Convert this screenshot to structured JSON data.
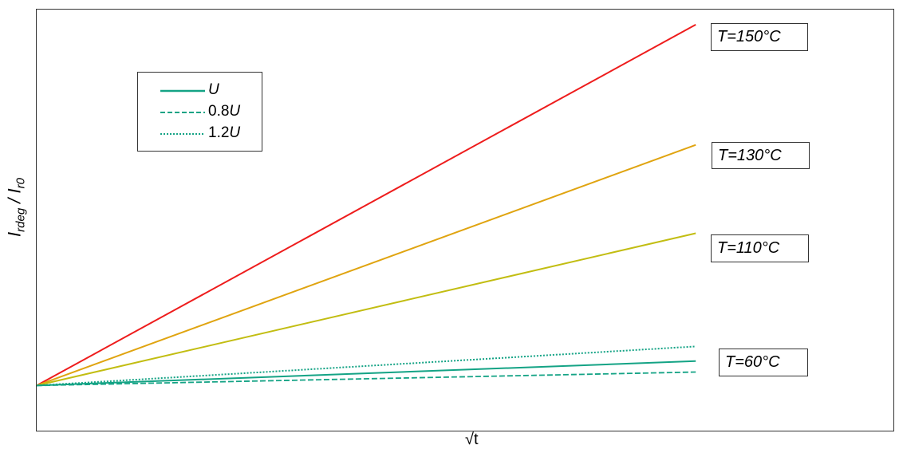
{
  "chart_data": {
    "type": "line",
    "xlabel": "√t",
    "ylabel": {
      "main": "I",
      "sub1": "rdeg",
      "sep": " / I",
      "sub2": "r0"
    },
    "colors": {
      "T150": "#ee1c1c",
      "T130": "#e0a410",
      "T110": "#c2bd12",
      "T60": "#14a385"
    },
    "xlim": [
      0,
      1.3
    ],
    "ylim": [
      -0.12,
      1.0
    ],
    "legend": {
      "position": "top-left",
      "entries": [
        {
          "prefix": "",
          "var": "U",
          "style": "solid"
        },
        {
          "prefix": "0.8",
          "var": "U",
          "style": "dashed"
        },
        {
          "prefix": "1.2",
          "var": "U",
          "style": "dotted"
        }
      ]
    },
    "series": [
      {
        "label": "T=150°C",
        "color_key": "T150",
        "style": "solid",
        "x": [
          0,
          1
        ],
        "y": [
          0,
          0.96
        ]
      },
      {
        "label": "T=130°C",
        "color_key": "T130",
        "style": "solid",
        "x": [
          0,
          1
        ],
        "y": [
          0,
          0.64
        ]
      },
      {
        "label": "T=110°C",
        "color_key": "T110",
        "style": "solid",
        "x": [
          0,
          1
        ],
        "y": [
          0,
          0.405
        ]
      },
      {
        "label": "",
        "color_key": "T60",
        "style": "dotted",
        "x": [
          0,
          1
        ],
        "y": [
          0,
          0.104
        ]
      },
      {
        "label": "",
        "color_key": "T60",
        "style": "solid",
        "x": [
          0,
          1
        ],
        "y": [
          0,
          0.065
        ]
      },
      {
        "label": "",
        "color_key": "T60",
        "style": "dashed",
        "x": [
          0,
          1
        ],
        "y": [
          0,
          0.036
        ]
      }
    ],
    "annotations": [
      {
        "id": "ann150",
        "T": "T",
        "value": "=150",
        "unit": "°C"
      },
      {
        "id": "ann130",
        "T": "T",
        "value": "=130",
        "unit": "°C"
      },
      {
        "id": "ann110",
        "T": "T",
        "value": "=110",
        "unit": "°C"
      },
      {
        "id": "ann60",
        "T": "T",
        "value": "=60",
        "unit": "°C"
      }
    ]
  }
}
